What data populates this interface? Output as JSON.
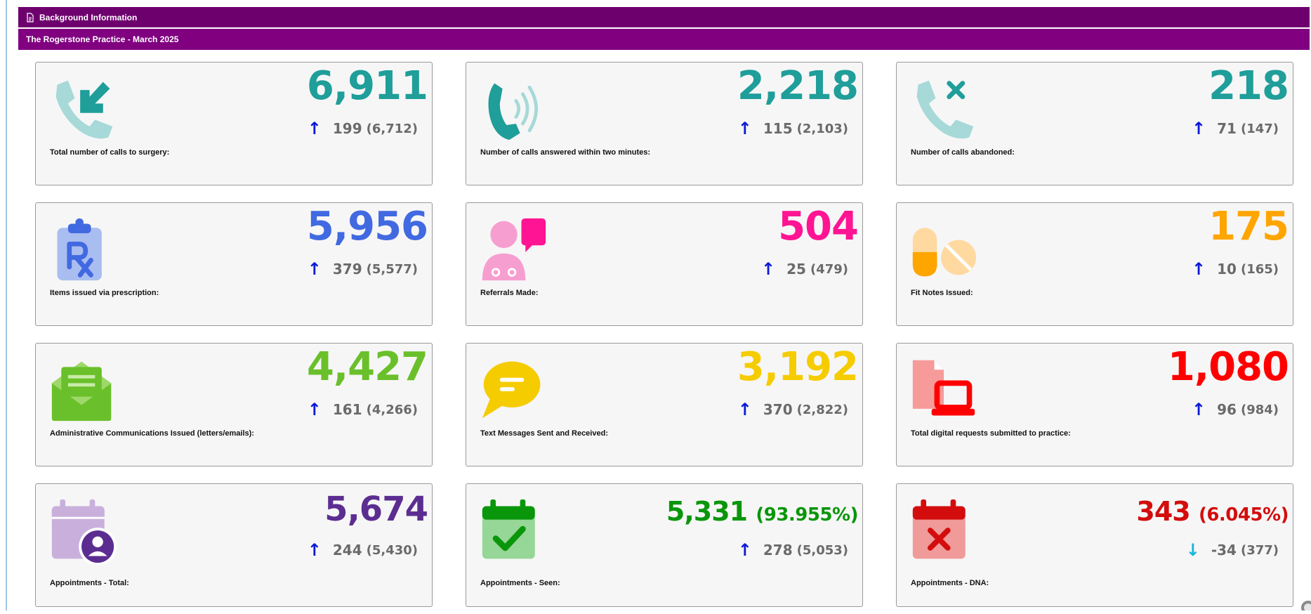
{
  "headers": {
    "section_title": "Background Information",
    "practice_title": "The Rogerstone Practice - March 2025"
  },
  "cards": [
    {
      "value": "6,911",
      "pct": "",
      "change": "199",
      "prev": "(6,712)",
      "direction": "up",
      "label": "Total number of calls to surgery:",
      "color": "#1f9e9a",
      "icon": "phone-incoming-icon"
    },
    {
      "value": "2,218",
      "pct": "",
      "change": "115",
      "prev": "(2,103)",
      "direction": "up",
      "label": "Number of calls answered within two minutes:",
      "color": "#1f9e9a",
      "icon": "phone-ringing-icon"
    },
    {
      "value": "218",
      "pct": "",
      "change": "71",
      "prev": "(147)",
      "direction": "up",
      "label": "Number of calls abandoned:",
      "color": "#1f9e9a",
      "icon": "phone-missed-icon"
    },
    {
      "value": "5,956",
      "pct": "",
      "change": "379",
      "prev": "(5,577)",
      "direction": "up",
      "label": "Items issued via prescription:",
      "color": "#4169e1",
      "icon": "prescription-clipboard-icon"
    },
    {
      "value": "504",
      "pct": "",
      "change": "25",
      "prev": "(479)",
      "direction": "up",
      "label": "Referrals Made:",
      "color": "#ff1493",
      "icon": "doctor-message-icon"
    },
    {
      "value": "175",
      "pct": "",
      "change": "10",
      "prev": "(165)",
      "direction": "up",
      "label": "Fit Notes Issued:",
      "color": "#ffa500",
      "icon": "pills-icon"
    },
    {
      "value": "4,427",
      "pct": "",
      "change": "161",
      "prev": "(4,266)",
      "direction": "up",
      "label": "Administrative Communications Issued (letters/emails):",
      "color": "#6ac02a",
      "icon": "envelope-open-icon"
    },
    {
      "value": "3,192",
      "pct": "",
      "change": "370",
      "prev": "(2,822)",
      "direction": "up",
      "label": "Text Messages Sent and Received:",
      "color": "#f5cc00",
      "icon": "chat-bubble-icon"
    },
    {
      "value": "1,080",
      "pct": "",
      "change": "96",
      "prev": "(984)",
      "direction": "up",
      "label": "Total digital requests submitted to practice:",
      "color": "#ff0000",
      "icon": "file-laptop-icon"
    },
    {
      "value": "5,674",
      "pct": "",
      "change": "244",
      "prev": "(5,430)",
      "direction": "up",
      "label": "Appointments - Total:",
      "color": "#5c2d91",
      "icon": "calendar-user-icon"
    },
    {
      "value": "5,331",
      "pct": "(93.955%)",
      "change": "278",
      "prev": "(5,053)",
      "direction": "up",
      "label": "Appointments - Seen:",
      "color": "#0a960a",
      "icon": "calendar-check-icon"
    },
    {
      "value": "343",
      "pct": "(6.045%)",
      "change": "-34",
      "prev": "(377)",
      "direction": "down",
      "label": "Appointments - DNA:",
      "color": "#d30d0d",
      "icon": "calendar-x-icon"
    }
  ],
  "glyphs": {
    "up": "↑",
    "down": "↓"
  }
}
